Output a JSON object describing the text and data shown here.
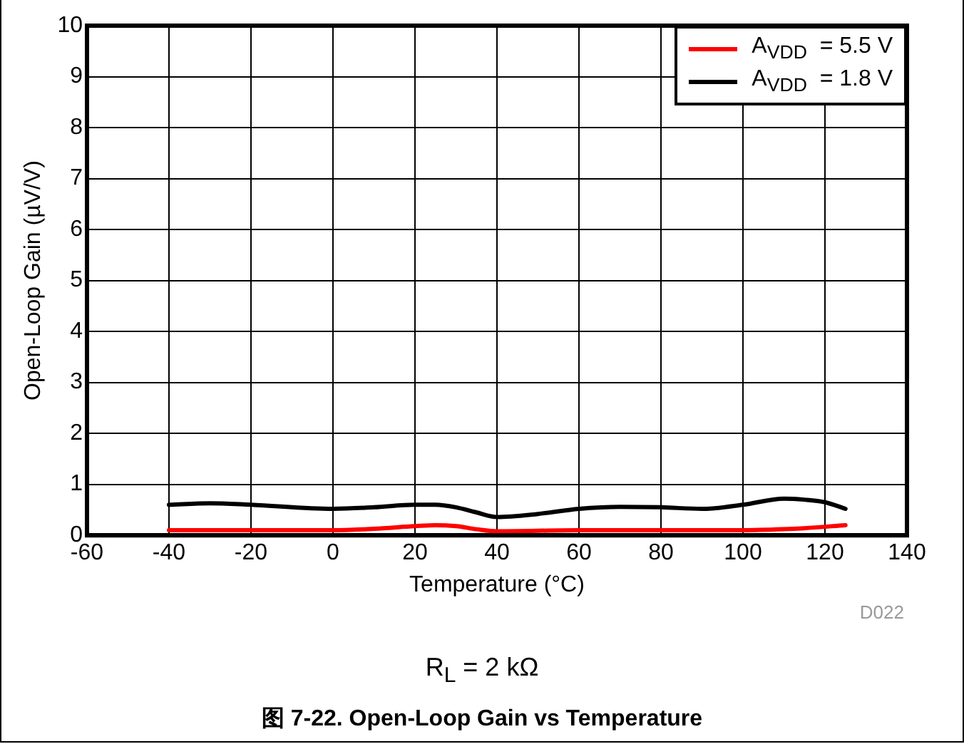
{
  "chart_data": {
    "type": "line",
    "title": "图 7-22. Open-Loop Gain vs Temperature",
    "xlabel": "Temperature (°C)",
    "ylabel": "Open-Loop Gain (µV/V)",
    "xlim": [
      -60,
      140
    ],
    "xticks": [
      -60,
      -40,
      -20,
      0,
      20,
      40,
      60,
      80,
      100,
      120,
      140
    ],
    "ylim": [
      0,
      10
    ],
    "yticks": [
      0,
      1,
      2,
      3,
      4,
      5,
      6,
      7,
      8,
      9,
      10
    ],
    "grid": true,
    "legend": "top right",
    "marker": "none",
    "line_style": "solid",
    "annotations": [
      "D022",
      "R$_{L}$ = 2 kΩ"
    ],
    "series": [
      {
        "name": "A$_{VDD}$  = 5.5 V",
        "color": "#ff0000",
        "x": [
          -40,
          -20,
          0,
          10,
          20,
          25,
          30,
          35,
          40,
          60,
          80,
          100,
          110,
          115,
          125
        ],
        "values": [
          0.1,
          0.1,
          0.1,
          0.13,
          0.18,
          0.2,
          0.18,
          0.12,
          0.08,
          0.1,
          0.1,
          0.1,
          0.12,
          0.14,
          0.2
        ]
      },
      {
        "name": "A$_{VDD}$  = 1.8 V",
        "color": "#000000",
        "x": [
          -40,
          -30,
          -20,
          0,
          10,
          20,
          25,
          30,
          35,
          40,
          50,
          60,
          70,
          80,
          90,
          100,
          110,
          115,
          120,
          125
        ],
        "values": [
          0.6,
          0.63,
          0.6,
          0.52,
          0.55,
          0.6,
          0.6,
          0.55,
          0.45,
          0.36,
          0.42,
          0.52,
          0.56,
          0.55,
          0.52,
          0.6,
          0.72,
          0.7,
          0.65,
          0.52
        ]
      }
    ]
  }
}
